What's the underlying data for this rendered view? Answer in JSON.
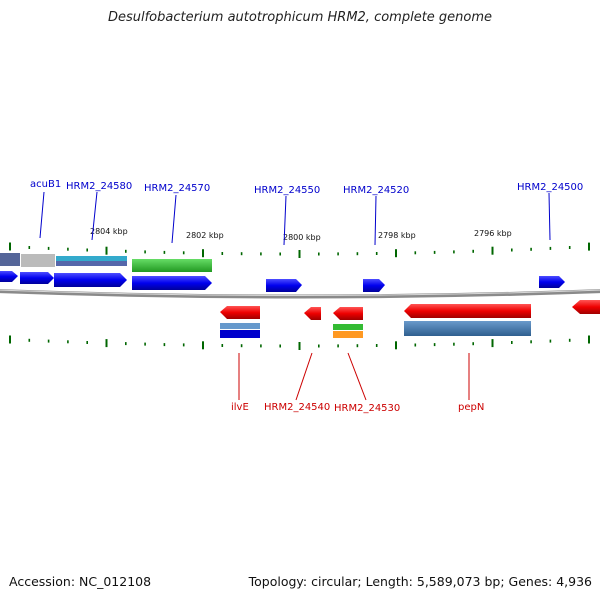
{
  "title": "Desulfobacterium autotrophicum HRM2, complete genome",
  "accession": "Accession: NC_012108",
  "topology": "Topology: circular; Length: 5,589,073 bp; Genes: 4,936",
  "scale_labels": [
    "2804 kbp",
    "2802 kbp",
    "2800 kbp",
    "2798 kbp",
    "2796 kbp"
  ],
  "top_gene_labels": [
    "acuB1",
    "HRM2_24580",
    "HRM2_24570",
    "HRM2_24550",
    "HRM2_24520",
    "HRM2_24500"
  ],
  "bottom_gene_labels": [
    "ilvE",
    "HRM2_24540",
    "HRM2_24530",
    "pepN"
  ],
  "colors": {
    "forward_gene": "#0000ee",
    "reverse_gene": "#ee0000",
    "top_label": "#0000cc",
    "bottom_label": "#cc0000",
    "tick": "#006600",
    "backbone": "#888888",
    "feature_green": "#33bb33",
    "feature_cyan": "#33aacc",
    "feature_steelblue": "#4477aa",
    "feature_orange": "#ff9922",
    "feature_slate": "#556699",
    "feature_grey": "#bbbbbb"
  }
}
